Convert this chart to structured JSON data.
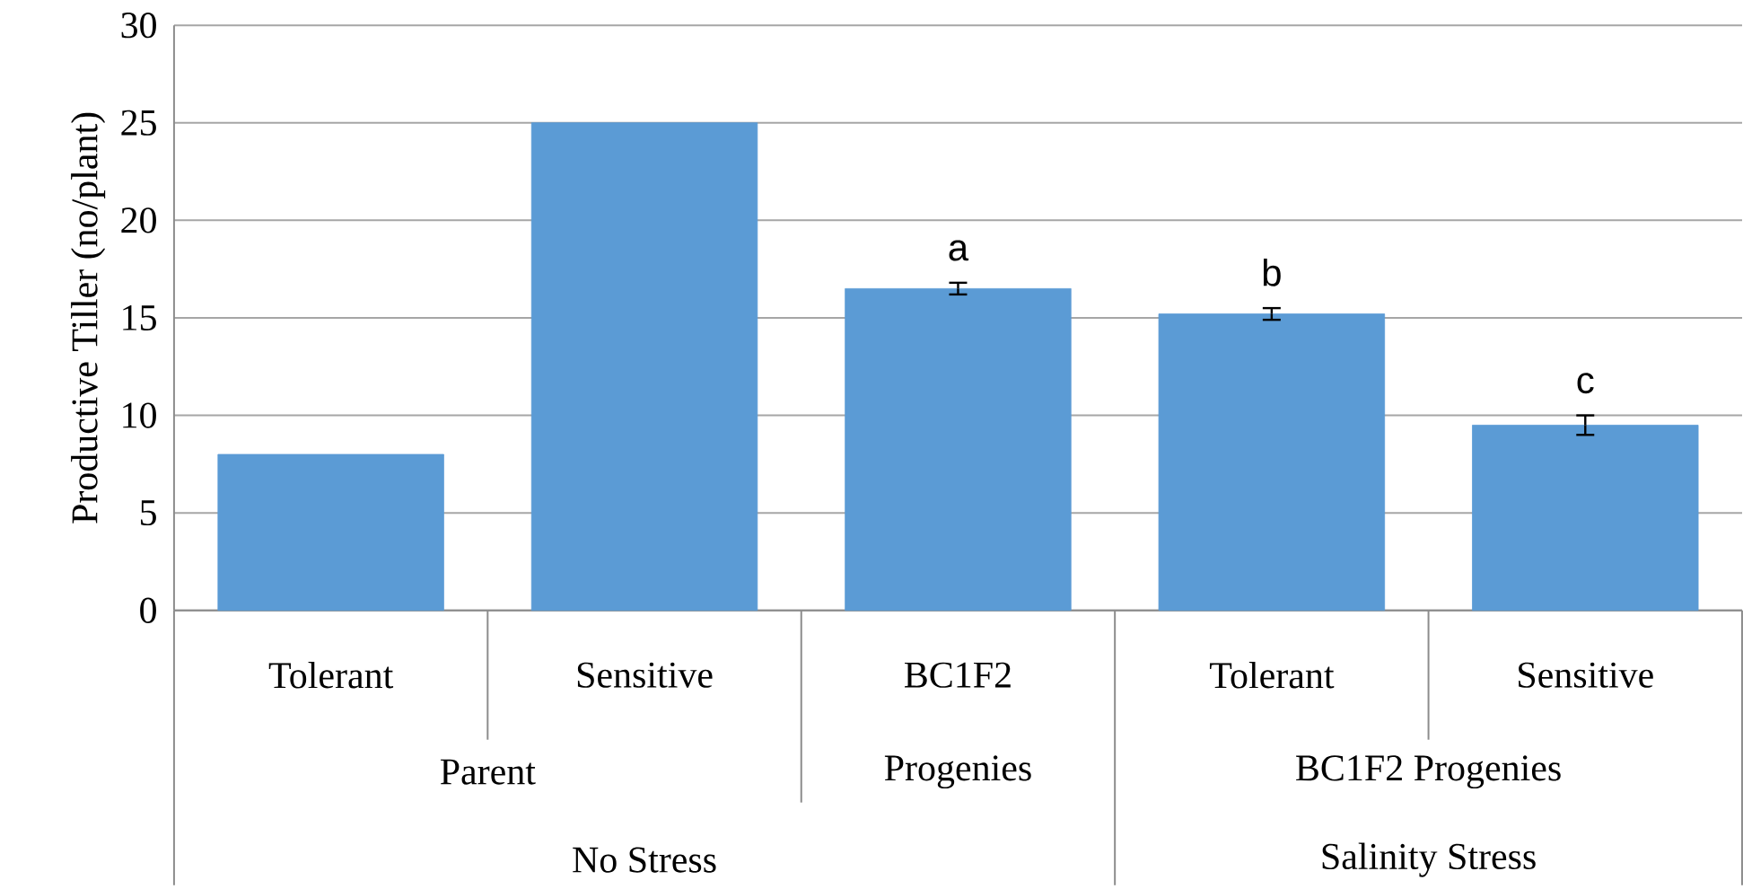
{
  "chart_data": {
    "type": "bar",
    "ylabel": "Productive Tiller (no/plant)",
    "categories": [
      "Tolerant",
      "Sensitive",
      "BC1F2",
      "Tolerant",
      "Sensitive"
    ],
    "values": [
      8,
      25,
      16.5,
      15.2,
      9.5
    ],
    "errors": [
      null,
      null,
      0.3,
      0.3,
      0.5
    ],
    "value_labels": [
      null,
      null,
      "a",
      "b",
      "c"
    ],
    "color": "#5b9bd5",
    "ylim": [
      0,
      30
    ],
    "yticks": [
      0,
      5,
      10,
      15,
      20,
      25,
      30
    ],
    "grid": "y",
    "annotations": [
      "Parent",
      "Progenies",
      "BC1F2 Progenies",
      "No Stress",
      "Salinity Stress"
    ]
  }
}
